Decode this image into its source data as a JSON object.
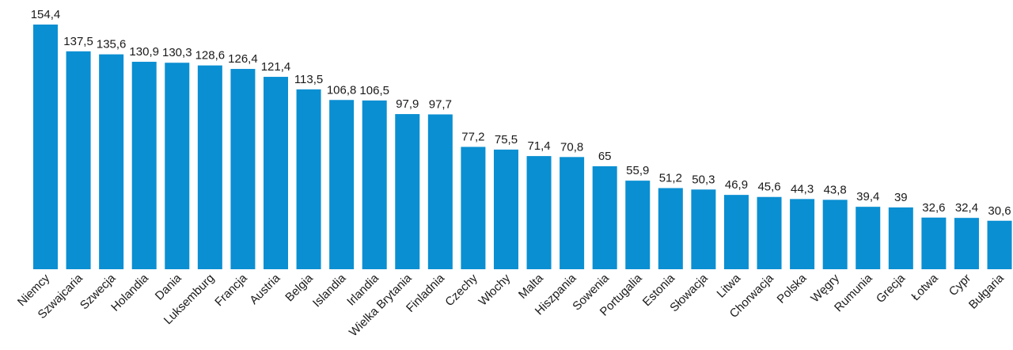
{
  "chart_data": {
    "type": "bar",
    "title": "",
    "xlabel": "",
    "ylabel": "",
    "ylim": [
      0,
      154.4
    ],
    "grid": false,
    "legend": "none",
    "bar_color": "#0a8fd2",
    "categories": [
      "Niemcy",
      "Szwajcaria",
      "Szwecja",
      "Holandia",
      "Dania",
      "Luksemburg",
      "Francja",
      "Austria",
      "Belgia",
      "Islandia",
      "Irlandia",
      "Wielka Brytania",
      "Finladnia",
      "Czechy",
      "Włochy",
      "Malta",
      "Hiszpania",
      "Sowenia",
      "Portugalia",
      "Estonia",
      "Słowacja",
      "Litwa",
      "Chorwacja",
      "Polska",
      "Węgry",
      "Rumunia",
      "Grecja",
      "Łotwa",
      "Cypr",
      "Bułgaria"
    ],
    "values": [
      154.4,
      137.5,
      135.6,
      130.9,
      130.3,
      128.6,
      126.4,
      121.4,
      113.5,
      106.8,
      106.5,
      97.9,
      97.7,
      77.2,
      75.5,
      71.4,
      70.8,
      65,
      55.9,
      51.2,
      50.3,
      46.9,
      45.6,
      44.3,
      43.8,
      39.4,
      39,
      32.6,
      32.4,
      30.6
    ],
    "value_labels": [
      "154,4",
      "137,5",
      "135,6",
      "130,9",
      "130,3",
      "128,6",
      "126,4",
      "121,4",
      "113,5",
      "106,8",
      "106,5",
      "97,9",
      "97,7",
      "77,2",
      "75,5",
      "71,4",
      "70,8",
      "65",
      "55,9",
      "51,2",
      "50,3",
      "46,9",
      "45,6",
      "44,3",
      "43,8",
      "39,4",
      "39",
      "32,6",
      "32,4",
      "30,6"
    ]
  }
}
